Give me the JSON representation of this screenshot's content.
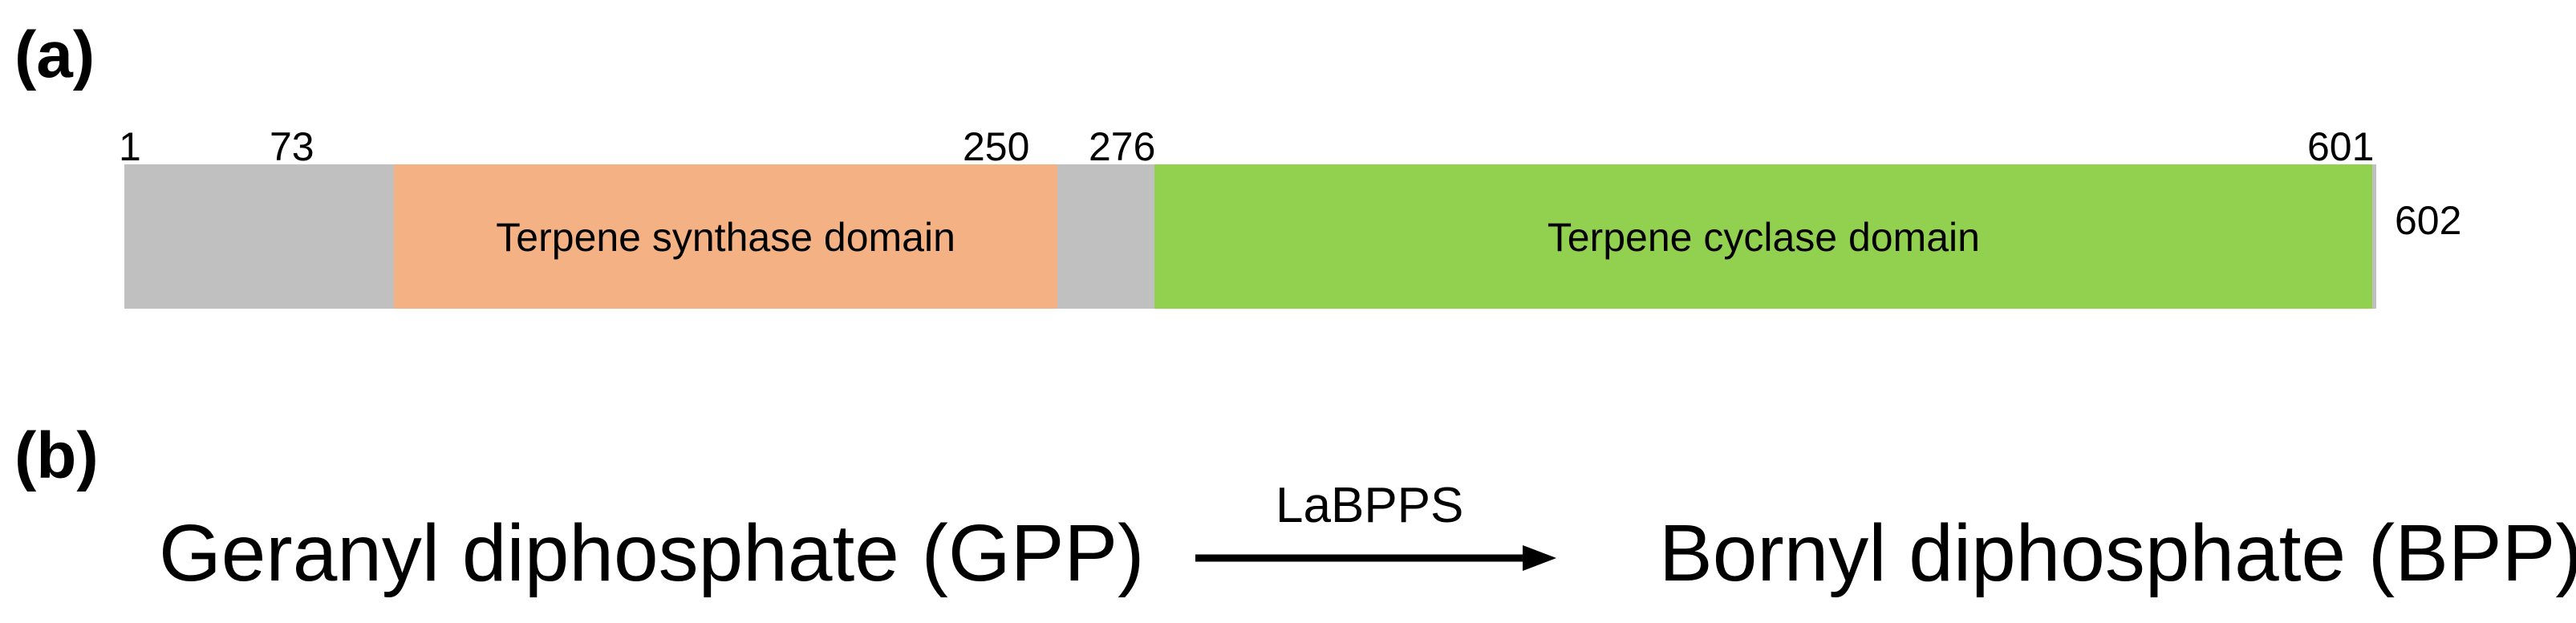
{
  "panel_a": {
    "label": "(a)",
    "sequence_length": 602,
    "segments": [
      {
        "start": 1,
        "end": 73,
        "name": "",
        "color": "#c0c0c0"
      },
      {
        "start": 73,
        "end": 250,
        "name": "Terpene synthase domain",
        "color": "#f4b183"
      },
      {
        "start": 250,
        "end": 276,
        "name": "",
        "color": "#c0c0c0"
      },
      {
        "start": 276,
        "end": 601,
        "name": "Terpene cyclase domain",
        "color": "#92d050"
      },
      {
        "start": 601,
        "end": 602,
        "name": "",
        "color": "#c0c0c0"
      }
    ],
    "position_labels": [
      "1",
      "73",
      "250",
      "276",
      "601",
      "602"
    ]
  },
  "panel_b": {
    "label": "(b)",
    "substrate": "Geranyl diphosphate (GPP)",
    "enzyme": "LaBPPS",
    "product": "Bornyl diphosphate (BPP)"
  }
}
